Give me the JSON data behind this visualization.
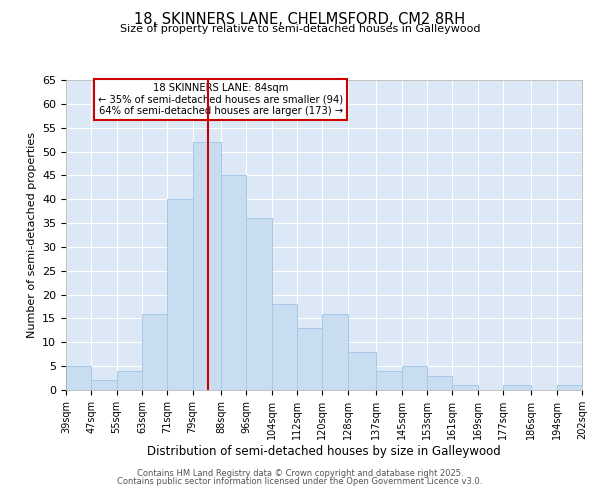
{
  "title_line1": "18, SKINNERS LANE, CHELMSFORD, CM2 8RH",
  "title_line2": "Size of property relative to semi-detached houses in Galleywood",
  "xlabel": "Distribution of semi-detached houses by size in Galleywood",
  "ylabel": "Number of semi-detached properties",
  "footer_line1": "Contains HM Land Registry data © Crown copyright and database right 2025.",
  "footer_line2": "Contains public sector information licensed under the Open Government Licence v3.0.",
  "annotation_line1": "18 SKINNERS LANE: 84sqm",
  "annotation_line2": "← 35% of semi-detached houses are smaller (94)",
  "annotation_line3": "64% of semi-detached houses are larger (173) →",
  "bar_color": "#c8ddf0",
  "bar_edge_color": "#a8c8e8",
  "grid_color": "#ffffff",
  "bg_color": "#dce8f5",
  "vline_x": 84,
  "vline_color": "#cc0000",
  "bin_edges": [
    39,
    47,
    55,
    63,
    71,
    79,
    88,
    96,
    104,
    112,
    120,
    128,
    137,
    145,
    153,
    161,
    169,
    177,
    186,
    194,
    202
  ],
  "bin_labels": [
    "39sqm",
    "47sqm",
    "55sqm",
    "63sqm",
    "71sqm",
    "79sqm",
    "88sqm",
    "96sqm",
    "104sqm",
    "112sqm",
    "120sqm",
    "128sqm",
    "137sqm",
    "145sqm",
    "153sqm",
    "161sqm",
    "169sqm",
    "177sqm",
    "186sqm",
    "194sqm",
    "202sqm"
  ],
  "counts": [
    5,
    2,
    4,
    16,
    40,
    52,
    45,
    36,
    18,
    13,
    16,
    8,
    4,
    5,
    3,
    1,
    0,
    1,
    0,
    1
  ],
  "ylim": [
    0,
    65
  ],
  "yticks": [
    0,
    5,
    10,
    15,
    20,
    25,
    30,
    35,
    40,
    45,
    50,
    55,
    60,
    65
  ]
}
